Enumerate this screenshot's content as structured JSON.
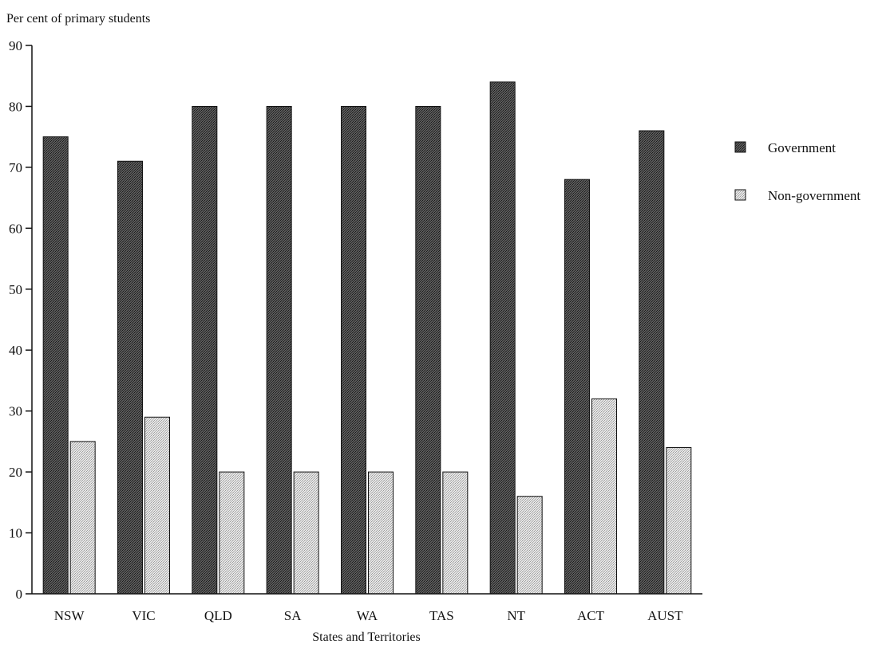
{
  "chart_data": {
    "type": "bar",
    "title": "",
    "ylabel": "Per cent of primary students",
    "xlabel": "States and Territories",
    "categories": [
      "NSW",
      "VIC",
      "QLD",
      "SA",
      "WA",
      "TAS",
      "NT",
      "ACT",
      "AUST"
    ],
    "series": [
      {
        "name": "Government",
        "values": [
          75,
          71,
          80,
          80,
          80,
          80,
          84,
          68,
          76
        ]
      },
      {
        "name": "Non-government",
        "values": [
          25,
          29,
          20,
          20,
          20,
          20,
          16,
          32,
          24
        ]
      }
    ],
    "ylim": [
      0,
      90
    ],
    "yticks": [
      0,
      10,
      20,
      30,
      40,
      50,
      60,
      70,
      80,
      90
    ],
    "grid": false,
    "legend_position": "top-right",
    "series_colors": [
      "#3a3a3a",
      "#d4d4d4"
    ]
  }
}
